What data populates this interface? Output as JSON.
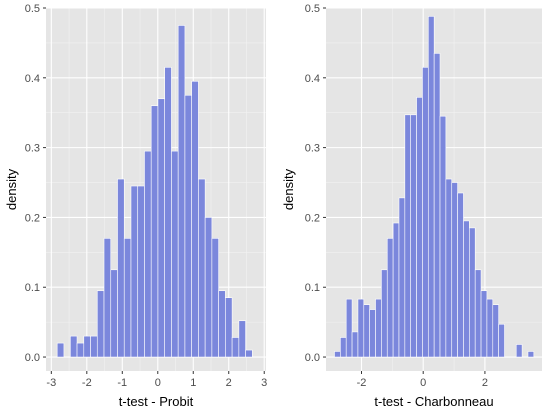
{
  "colors": {
    "bar_fill": "#7b87dc",
    "panel_bg": "#e5e5e5",
    "grid": "#ffffff"
  },
  "chart_data": [
    {
      "type": "bar",
      "xlabel": "t-test - Probit",
      "ylabel": "density",
      "xlim": [
        -3.15,
        3.05
      ],
      "ylim": [
        -0.02,
        0.5
      ],
      "xticks": [
        -3,
        -2,
        -1,
        0,
        1,
        2,
        3
      ],
      "yticks": [
        0.0,
        0.1,
        0.2,
        0.3,
        0.4,
        0.5
      ],
      "tick_labels_x": [
        "-3",
        "-2",
        "-1",
        "0",
        "1",
        "2",
        "3"
      ],
      "tick_labels_y": [
        "0.0",
        "0.1",
        "0.2",
        "0.3",
        "0.4",
        "0.5"
      ],
      "grid": true,
      "bin_width": 0.19,
      "bin_centers": [
        -2.74,
        -2.37,
        -2.18,
        -1.99,
        -1.8,
        -1.61,
        -1.42,
        -1.23,
        -1.04,
        -0.85,
        -0.66,
        -0.47,
        -0.28,
        -0.09,
        0.1,
        0.29,
        0.48,
        0.67,
        0.86,
        1.05,
        1.24,
        1.43,
        1.62,
        1.81,
        2.0,
        2.19,
        2.38,
        2.57
      ],
      "values": [
        0.02,
        0.03,
        0.02,
        0.03,
        0.03,
        0.095,
        0.17,
        0.125,
        0.255,
        0.17,
        0.245,
        0.245,
        0.295,
        0.36,
        0.37,
        0.415,
        0.295,
        0.475,
        0.375,
        0.395,
        0.255,
        0.2,
        0.17,
        0.095,
        0.085,
        0.028,
        0.052,
        0.01
      ]
    },
    {
      "type": "bar",
      "xlabel": "t-test - Charbonneau",
      "ylabel": "density",
      "xlim": [
        -3.15,
        3.85
      ],
      "ylim": [
        -0.02,
        0.5
      ],
      "xticks": [
        -2,
        0,
        2
      ],
      "yticks": [
        0.0,
        0.1,
        0.2,
        0.3,
        0.4,
        0.5
      ],
      "tick_labels_x": [
        "-2",
        "0",
        "2"
      ],
      "tick_labels_y": [
        "0.0",
        "0.1",
        "0.2",
        "0.3",
        "0.4",
        "0.5"
      ],
      "grid": true,
      "bin_width": 0.19,
      "bin_centers": [
        -2.78,
        -2.59,
        -2.4,
        -2.21,
        -2.02,
        -1.83,
        -1.64,
        -1.45,
        -1.26,
        -1.07,
        -0.88,
        -0.69,
        -0.5,
        -0.31,
        -0.12,
        0.07,
        0.26,
        0.45,
        0.64,
        0.83,
        1.02,
        1.21,
        1.4,
        1.59,
        1.78,
        1.97,
        2.16,
        2.35,
        2.54,
        3.11,
        3.49
      ],
      "values": [
        0.008,
        0.028,
        0.083,
        0.036,
        0.083,
        0.075,
        0.068,
        0.083,
        0.125,
        0.17,
        0.192,
        0.228,
        0.347,
        0.347,
        0.372,
        0.415,
        0.488,
        0.435,
        0.345,
        0.255,
        0.25,
        0.235,
        0.195,
        0.185,
        0.125,
        0.095,
        0.083,
        0.075,
        0.047,
        0.018,
        0.008
      ]
    }
  ]
}
